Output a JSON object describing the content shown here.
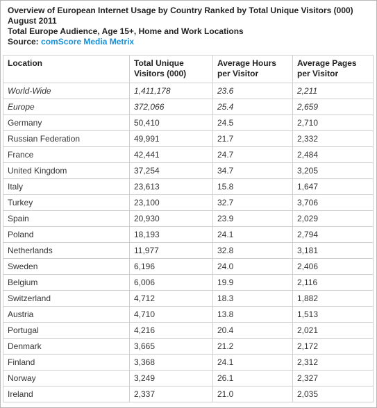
{
  "header": {
    "title_line1": "Overview of European Internet Usage by Country Ranked by Total Unique Visitors (000)",
    "title_line2": "August 2011",
    "subtitle": "Total Europe Audience, Age 15+, Home and Work Locations",
    "source_label": "Source:",
    "source_name": "comScore Media Metrix"
  },
  "colors": {
    "source_link": "#1a8fd5",
    "border": "#cfcfcf"
  },
  "chart_data": {
    "type": "table",
    "title": "Overview of European Internet Usage by Country Ranked by Total Unique Visitors (000)",
    "columns": [
      "Location",
      "Total Unique Visitors (000)",
      "Average Hours per Visitor",
      "Average Pages per Visitor"
    ],
    "header_lines": [
      [
        "Location",
        ""
      ],
      [
        "Total Unique",
        "Visitors (000)"
      ],
      [
        "Average Hours",
        "per Visitor"
      ],
      [
        "Average Pages",
        "per Visitor"
      ]
    ],
    "rows": [
      {
        "location": "World-Wide",
        "visitors": "1,411,178",
        "hours": "23.6",
        "pages": "2,211",
        "italic": true
      },
      {
        "location": "Europe",
        "visitors": "372,066",
        "hours": "25.4",
        "pages": "2,659",
        "italic": true
      },
      {
        "location": "Germany",
        "visitors": "50,410",
        "hours": "24.5",
        "pages": "2,710"
      },
      {
        "location": "Russian Federation",
        "visitors": "49,991",
        "hours": "21.7",
        "pages": "2,332"
      },
      {
        "location": "France",
        "visitors": "42,441",
        "hours": "24.7",
        "pages": "2,484"
      },
      {
        "location": "United Kingdom",
        "visitors": "37,254",
        "hours": "34.7",
        "pages": "3,205"
      },
      {
        "location": "Italy",
        "visitors": "23,613",
        "hours": "15.8",
        "pages": "1,647"
      },
      {
        "location": "Turkey",
        "visitors": "23,100",
        "hours": "32.7",
        "pages": "3,706"
      },
      {
        "location": "Spain",
        "visitors": "20,930",
        "hours": "23.9",
        "pages": "2,029"
      },
      {
        "location": "Poland",
        "visitors": "18,193",
        "hours": "24.1",
        "pages": "2,794"
      },
      {
        "location": "Netherlands",
        "visitors": "11,977",
        "hours": "32.8",
        "pages": "3,181"
      },
      {
        "location": "Sweden",
        "visitors": "6,196",
        "hours": "24.0",
        "pages": "2,406"
      },
      {
        "location": "Belgium",
        "visitors": "6,006",
        "hours": "19.9",
        "pages": "2,116"
      },
      {
        "location": "Switzerland",
        "visitors": "4,712",
        "hours": "18.3",
        "pages": "1,882"
      },
      {
        "location": "Austria",
        "visitors": "4,710",
        "hours": "13.8",
        "pages": "1,513"
      },
      {
        "location": "Portugal",
        "visitors": "4,216",
        "hours": "20.4",
        "pages": "2,021"
      },
      {
        "location": "Denmark",
        "visitors": "3,665",
        "hours": "21.2",
        "pages": "2,172"
      },
      {
        "location": "Finland",
        "visitors": "3,368",
        "hours": "24.1",
        "pages": "2,312"
      },
      {
        "location": "Norway",
        "visitors": "3,249",
        "hours": "26.1",
        "pages": "2,327"
      },
      {
        "location": "Ireland",
        "visitors": "2,337",
        "hours": "21.0",
        "pages": "2,035"
      }
    ]
  }
}
